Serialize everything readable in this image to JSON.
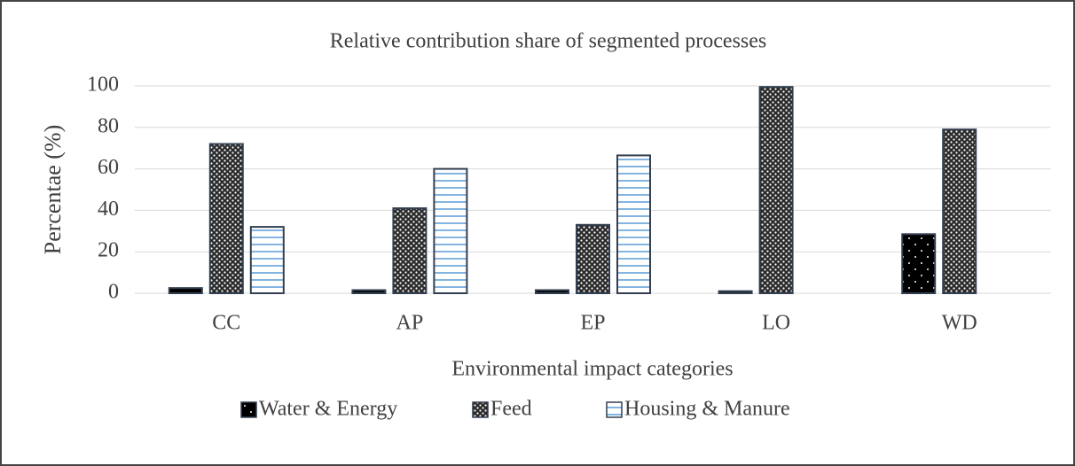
{
  "chart_data": {
    "type": "bar",
    "title": "Relative contribution share of segmented processes",
    "x_label": "Environmental impact categories",
    "y_label": "Percentae (%)",
    "categories": [
      "CC",
      "AP",
      "EP",
      "LO",
      "WD"
    ],
    "series": [
      {
        "name": "Water & Energy",
        "color": "#000000",
        "values": [
          2.5,
          1.5,
          1.5,
          1,
          28.5
        ]
      },
      {
        "name": "Feed",
        "color": "#3a3a3a",
        "values": [
          72,
          41,
          33,
          99.5,
          79
        ]
      },
      {
        "name": "Housing & Manure",
        "color": "#5b9bd5",
        "values": [
          32,
          60,
          66.5,
          0,
          0
        ]
      }
    ],
    "ylim": [
      0,
      100
    ],
    "yticks": [
      0,
      20,
      40,
      60,
      80,
      100
    ],
    "grid": true,
    "legend": "bottom"
  }
}
